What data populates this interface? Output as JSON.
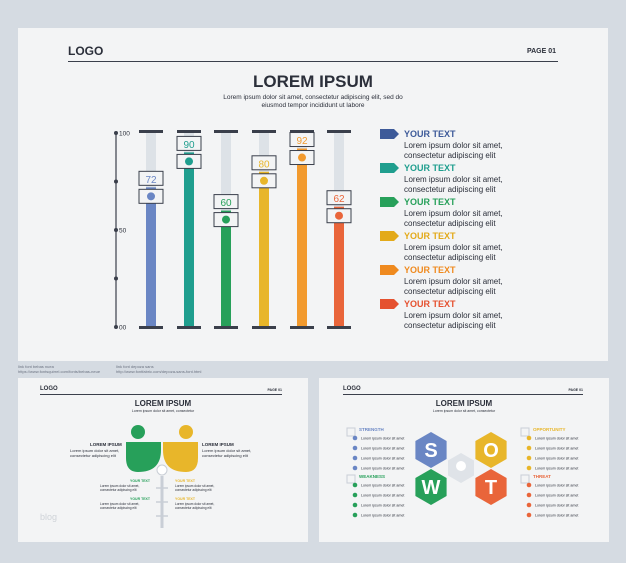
{
  "main": {
    "logo": "LOGO",
    "page": "PAGE 01",
    "title": "LOREM IPSUM",
    "subtitle_l1": "Lorem ipsum dolor sit amet, consectetur adipiscing elit, sed do",
    "subtitle_l2": "eiusmod tempor incididunt ut labore",
    "axis_ticks": [
      "100",
      "50",
      "00"
    ],
    "legend": [
      {
        "title": "YOUR TEXT",
        "l1": "Lorem ipsum dolor sit amet,",
        "l2": "consectetur adipiscing elit",
        "color": "#3d5a99"
      },
      {
        "title": "YOUR TEXT",
        "l1": "Lorem ipsum dolor sit amet,",
        "l2": "consectetur adipiscing elit",
        "color": "#1f9e8e"
      },
      {
        "title": "YOUR TEXT",
        "l1": "Lorem ipsum dolor sit amet,",
        "l2": "consectetur adipiscing elit",
        "color": "#27a05a"
      },
      {
        "title": "YOUR TEXT",
        "l1": "Lorem ipsum dolor sit amet,",
        "l2": "consectetur adipiscing elit",
        "color": "#e3aa1a"
      },
      {
        "title": "YOUR TEXT",
        "l1": "Lorem ipsum dolor sit amet,",
        "l2": "consectetur adipiscing elit",
        "color": "#ef8a1f"
      },
      {
        "title": "YOUR TEXT",
        "l1": "Lorem ipsum dolor sit amet,",
        "l2": "consectetur adipiscing elit",
        "color": "#e5512f"
      }
    ]
  },
  "chart_data": {
    "type": "bar",
    "categories": [
      "",
      "",
      "",
      "",
      "",
      ""
    ],
    "values": [
      72,
      90,
      60,
      80,
      92,
      62
    ],
    "colors": [
      "#6a86c4",
      "#1f9e8e",
      "#27a05a",
      "#e8b62a",
      "#f29a2e",
      "#e9653a"
    ],
    "icons": [
      "rocket-icon",
      "recycle-icon",
      "lightbulb-icon",
      "handshake-icon",
      "gavel-icon",
      "microphone-icon"
    ],
    "ylim": [
      0,
      100
    ],
    "yticks": [
      "100",
      "50",
      "00"
    ]
  },
  "captions": {
    "left_l1": "link font bebas nuea",
    "left_l2": "https://www.fontsquirrel.com/fonts/bebas-neue",
    "right_l1": "link font depoza sans",
    "right_l2": "http://www.fontfabric.com/depoza-sans-font.html"
  },
  "slide2": {
    "logo": "LOGO",
    "page": "PAGE 01",
    "title": "LOREM IPSUM",
    "sub": "Lorem ipsum dolor sit amet, consectetur",
    "left_head": "LOREM IPSUM",
    "left_text": "Lorem ipsum dolor sit amet, consectetur adipiscing elit",
    "right_head": "LOREM IPSUM",
    "right_text": "Lorem ipsum dolor sit amet, consectetur adipiscing elit",
    "items": [
      {
        "label": "YOUR TEXT",
        "text": "Lorem ipsum dolor sit amet, consectetur adipiscing elit"
      },
      {
        "label": "YOUR TEXT",
        "text": "Lorem ipsum dolor sit amet, consectetur adipiscing elit"
      },
      {
        "label": "YOUR TEXT",
        "text": "Lorem ipsum dolor sit amet, consectetur adipiscing elit"
      },
      {
        "label": "YOUR TEXT",
        "text": "Lorem ipsum dolor sit amet, consectetur adipiscing elit"
      }
    ],
    "watermark": "blog"
  },
  "slide3": {
    "logo": "LOGO",
    "page": "PAGE 01",
    "title": "LOREM IPSUM",
    "sub": "Lorem ipsum dolor sit amet, consectetur",
    "strength": "STRENGTH",
    "weakness": "WEAKNESS",
    "opportunity": "OPPORTUNITY",
    "threat": "THREAT",
    "letters": [
      "S",
      "O",
      "W",
      "T"
    ],
    "line": "Lorem ipsum dolor sit amet"
  }
}
